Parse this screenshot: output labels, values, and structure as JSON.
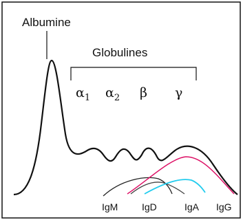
{
  "labels": {
    "albumine": "Albumine",
    "globulines": "Globulines",
    "alpha1": "α",
    "alpha1_sub": "1",
    "alpha2": "α",
    "alpha2_sub": "2",
    "beta": "β",
    "gamma": "γ",
    "igm": "IgM",
    "igd": "IgD",
    "iga": "IgA",
    "igg": "IgG"
  },
  "colors": {
    "main_curve": "#111111",
    "igm_curve": "#222222",
    "igd_curve": "#444444",
    "iga_curve": "#22ccee",
    "igg_curve": "#dd1166",
    "frame": "#111111",
    "background": "#ffffff"
  }
}
